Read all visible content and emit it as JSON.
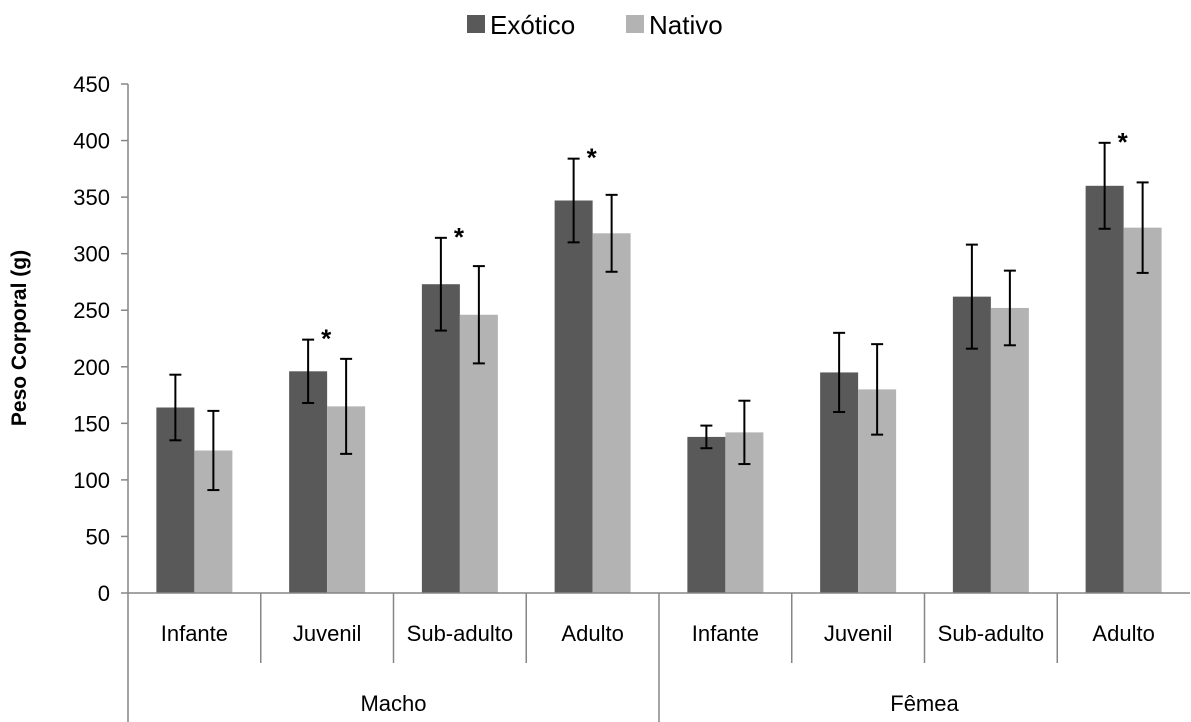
{
  "chart_data": {
    "type": "bar",
    "ylabel": "Peso Corporal (g)",
    "xlabel": "",
    "ylim": [
      0,
      450
    ],
    "yticks": [
      0,
      50,
      100,
      150,
      200,
      250,
      300,
      350,
      400,
      450
    ],
    "grid": false,
    "legend_position": "top-center",
    "groups": [
      {
        "label": "Macho",
        "categories": [
          "Infante",
          "Juvenil",
          "Sub-adulto",
          "Adulto"
        ]
      },
      {
        "label": "Fêmea",
        "categories": [
          "Infante",
          "Juvenil",
          "Sub-adulto",
          "Adulto"
        ]
      }
    ],
    "series": [
      {
        "name": "Exótico",
        "color": "#595959",
        "values": [
          164,
          196,
          273,
          347,
          138,
          195,
          262,
          360
        ],
        "error": [
          29,
          28,
          41,
          37,
          10,
          35,
          46,
          38
        ]
      },
      {
        "name": "Nativo",
        "color": "#b3b3b3",
        "values": [
          126,
          165,
          246,
          318,
          142,
          180,
          252,
          323
        ],
        "error": [
          35,
          42,
          43,
          34,
          28,
          40,
          33,
          40
        ]
      }
    ],
    "significance": {
      "marker": "*",
      "indices": [
        1,
        2,
        3,
        7
      ]
    }
  }
}
